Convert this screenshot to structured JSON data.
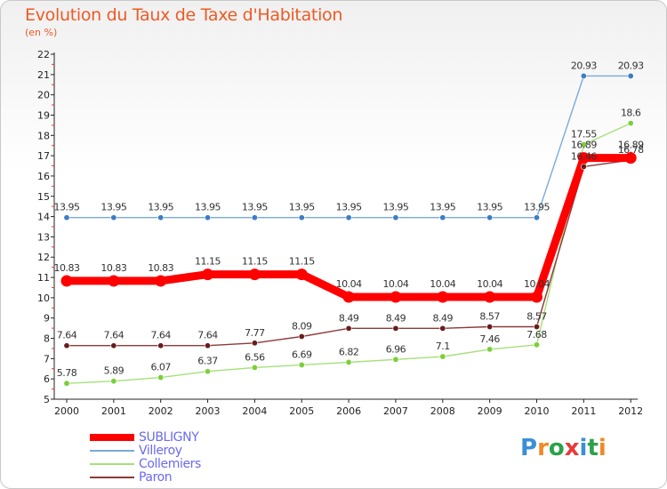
{
  "title": "Evolution du Taux de Taxe d'Habitation",
  "subtitle": "(en %)",
  "logo": "Proxiti",
  "chart_data": {
    "type": "line",
    "title": "Evolution du Taux de Taxe d'Habitation",
    "subtitle": "(en %)",
    "xlabel": "",
    "ylabel": "",
    "ylim": [
      5,
      22
    ],
    "yticks": [
      5,
      6,
      7,
      8,
      9,
      10,
      11,
      12,
      13,
      14,
      15,
      16,
      17,
      18,
      19,
      20,
      21,
      22
    ],
    "grid": false,
    "legend_position": "bottom-left",
    "x": [
      "2000",
      "2001",
      "2002",
      "2003",
      "2004",
      "2005",
      "2006",
      "2007",
      "2008",
      "2009",
      "2010",
      "2011",
      "2012"
    ],
    "series": [
      {
        "name": "SUBLIGNY",
        "color": "#ff0000",
        "bold": true,
        "marker": "#ff0000",
        "values": [
          10.83,
          10.83,
          10.83,
          11.15,
          11.15,
          11.15,
          10.04,
          10.04,
          10.04,
          10.04,
          10.04,
          16.89,
          16.89
        ]
      },
      {
        "name": "Villeroy",
        "color": "#7aaad6",
        "marker": "#3e7dc4",
        "values": [
          13.95,
          13.95,
          13.95,
          13.95,
          13.95,
          13.95,
          13.95,
          13.95,
          13.95,
          13.95,
          13.95,
          20.93,
          20.93
        ]
      },
      {
        "name": "Collemiers",
        "color": "#a6e07a",
        "marker": "#7ccf3a",
        "values": [
          5.78,
          5.89,
          6.07,
          6.37,
          6.56,
          6.69,
          6.82,
          6.96,
          7.1,
          7.46,
          7.68,
          17.55,
          18.6
        ]
      },
      {
        "name": "Paron",
        "color": "#8b3a3a",
        "marker": "#6a1c1c",
        "values": [
          7.64,
          7.64,
          7.64,
          7.64,
          7.77,
          8.09,
          8.49,
          8.49,
          8.49,
          8.57,
          8.57,
          16.46,
          16.78
        ]
      }
    ]
  }
}
